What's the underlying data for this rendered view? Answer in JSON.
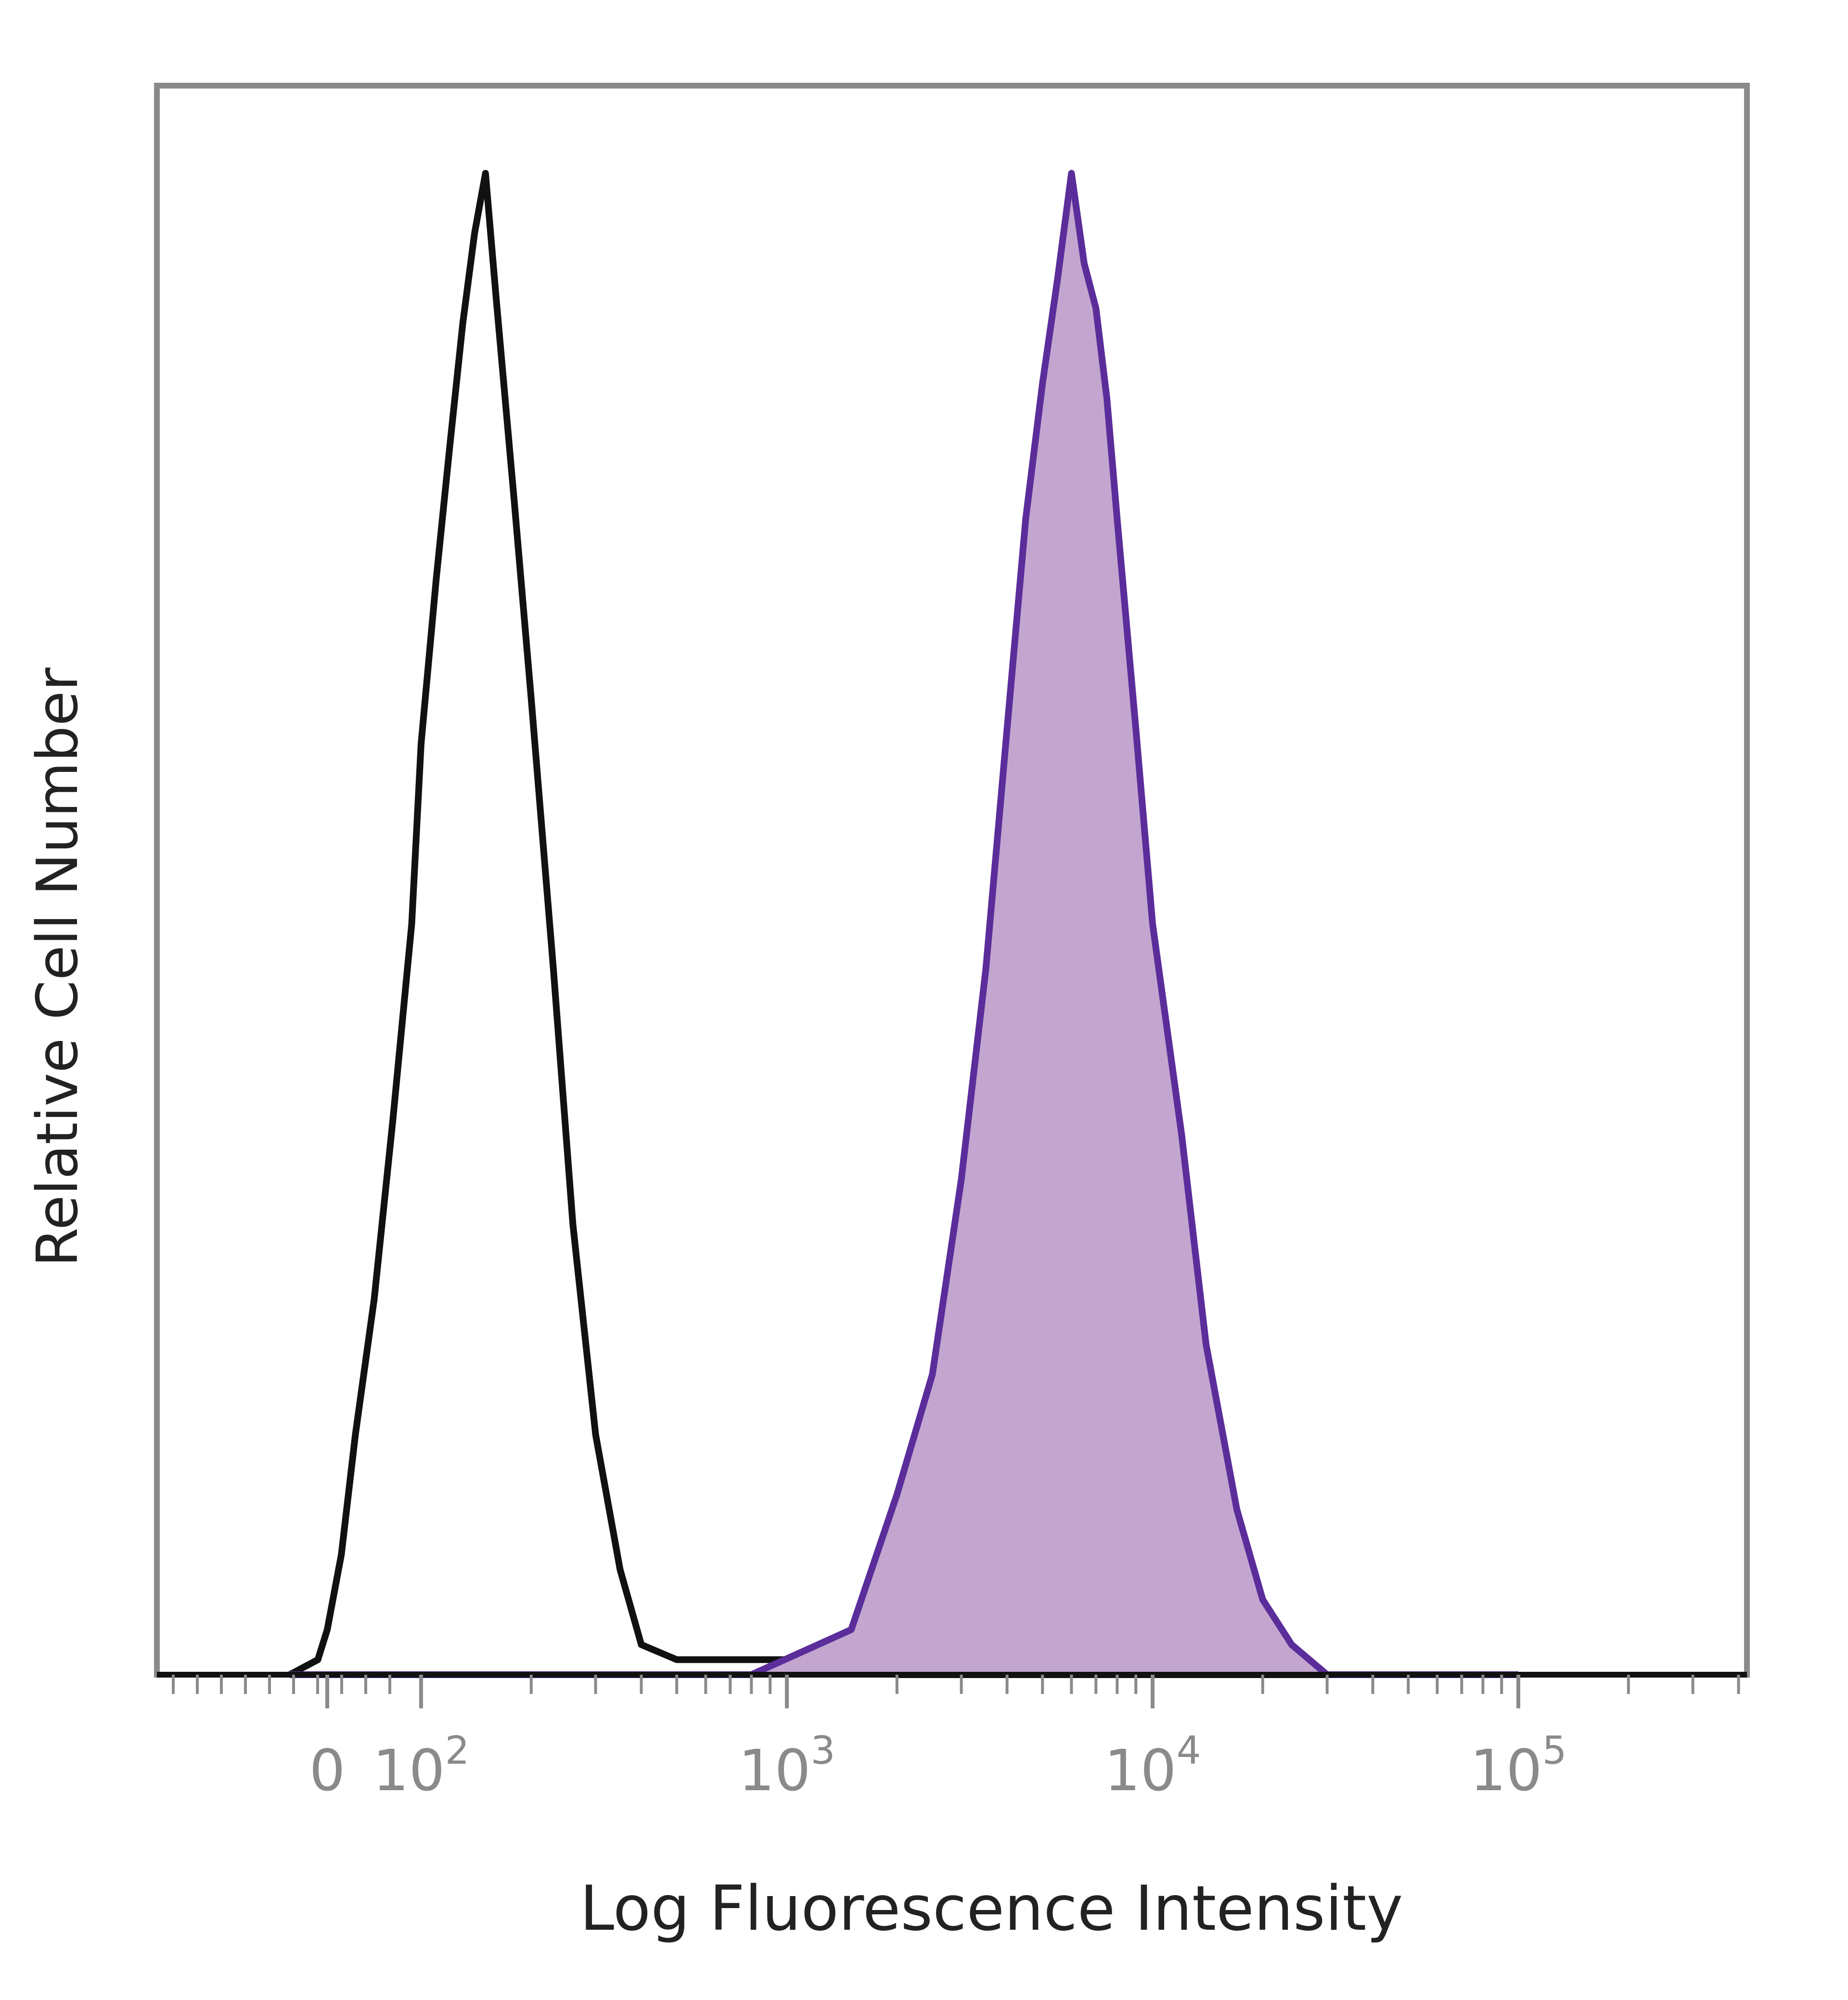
{
  "chart_data": {
    "type": "area",
    "title": "",
    "xlabel": "Log Fluorescence Intensity",
    "ylabel": "Relative Cell Number",
    "x_scale": "biexponential",
    "xlim": [
      -60,
      200000
    ],
    "ylim": [
      0,
      1
    ],
    "grid": false,
    "legend": "none",
    "x_tick_labels": [
      {
        "value": 0,
        "label": "0"
      },
      {
        "value": 100,
        "label": "10",
        "exp": "2"
      },
      {
        "value": 1000,
        "label": "10",
        "exp": "3"
      },
      {
        "value": 10000,
        "label": "10",
        "exp": "4"
      },
      {
        "value": 100000,
        "label": "10",
        "exp": "5"
      }
    ],
    "series": [
      {
        "fill": "none",
        "stroke": "#111111",
        "x": [
          -40,
          -10,
          0,
          15,
          30,
          50,
          70,
          90,
          100,
          110,
          120,
          130,
          140,
          150,
          160,
          180,
          200,
          230,
          260,
          300,
          350,
          400,
          500,
          700,
          1000,
          1500,
          2000,
          100000
        ],
        "y": [
          0.0,
          0.01,
          0.03,
          0.08,
          0.16,
          0.25,
          0.37,
          0.5,
          0.62,
          0.73,
          0.82,
          0.9,
          0.96,
          1.0,
          0.92,
          0.78,
          0.65,
          0.47,
          0.3,
          0.16,
          0.07,
          0.02,
          0.01,
          0.01,
          0.01,
          0.005,
          0.0,
          0.0
        ]
      },
      {
        "fill": "#c3a6cf",
        "stroke": "#5b2d9b",
        "x": [
          -40,
          800,
          1500,
          2000,
          2500,
          3000,
          3500,
          4000,
          4500,
          5000,
          5500,
          6000,
          6500,
          7000,
          7500,
          8000,
          9000,
          10000,
          12000,
          14000,
          17000,
          20000,
          24000,
          30000,
          100000
        ],
        "y": [
          0.0,
          0.0,
          0.03,
          0.12,
          0.2,
          0.33,
          0.47,
          0.63,
          0.77,
          0.86,
          0.93,
          1.0,
          0.94,
          0.91,
          0.85,
          0.77,
          0.63,
          0.5,
          0.36,
          0.22,
          0.11,
          0.05,
          0.02,
          0.0,
          0.0
        ]
      }
    ]
  }
}
